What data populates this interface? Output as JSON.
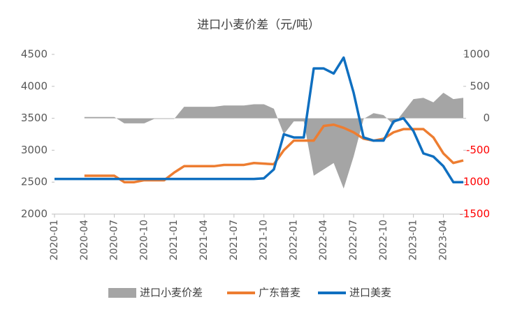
{
  "chart_data": {
    "type": "line",
    "title": "进口小麦价差（元/吨）",
    "categories": [
      "2020-01",
      null,
      null,
      "2020-04",
      null,
      null,
      "2020-07",
      null,
      null,
      "2020-10",
      null,
      null,
      "2021-01",
      null,
      null,
      "2021-04",
      null,
      null,
      "2021-07",
      null,
      null,
      "2021-10",
      null,
      null,
      "2022-01",
      null,
      null,
      "2022-04",
      null,
      null,
      "2022-07",
      null,
      null,
      "2022-10",
      null,
      null,
      "2023-01",
      null,
      null,
      "2023-04",
      null,
      null
    ],
    "series": [
      {
        "name": "进口小麦价差",
        "color": "#a5a5a5",
        "style": "area",
        "axis": "y2",
        "values": [
          null,
          null,
          null,
          20,
          20,
          20,
          20,
          -80,
          -80,
          -80,
          -10,
          -10,
          -10,
          180,
          180,
          180,
          180,
          200,
          200,
          200,
          220,
          220,
          150,
          -250,
          -50,
          -50,
          -900,
          -800,
          -700,
          -1100,
          -600,
          -10,
          80,
          50,
          -100,
          100,
          300,
          320,
          250,
          400,
          300,
          320
        ]
      },
      {
        "name": "广东普麦",
        "color": "#ed7d31",
        "style": "line",
        "values": [
          null,
          null,
          null,
          2600,
          2600,
          2600,
          2600,
          2500,
          2500,
          2530,
          2530,
          2530,
          2650,
          2750,
          2750,
          2750,
          2750,
          2770,
          2770,
          2770,
          2800,
          2790,
          2780,
          3000,
          3150,
          3150,
          3150,
          3380,
          3400,
          3350,
          3280,
          3180,
          3150,
          3180,
          3280,
          3330,
          3330,
          3330,
          3200,
          2950,
          2800,
          2840
        ]
      },
      {
        "name": "进口美麦",
        "color": "#0f6fc0",
        "style": "line",
        "values": [
          2550,
          2550,
          2550,
          2550,
          2550,
          2550,
          2550,
          2550,
          2550,
          2550,
          2550,
          2550,
          2550,
          2550,
          2550,
          2550,
          2550,
          2550,
          2550,
          2550,
          2550,
          2560,
          2700,
          3250,
          3200,
          3200,
          4280,
          4280,
          4200,
          4450,
          3900,
          3200,
          3150,
          3150,
          3450,
          3500,
          3300,
          2950,
          2900,
          2750,
          2500,
          2500
        ]
      }
    ],
    "ylim": [
      2000,
      4500
    ],
    "yticks": [
      2000,
      2500,
      3000,
      3500,
      4000,
      4500
    ],
    "y2lim": [
      -1500,
      1000
    ],
    "y2ticks": [
      -1500,
      -1000,
      -500,
      0,
      500,
      1000
    ],
    "y2_negative_color": "#ff0000",
    "legend": "bottom",
    "grid": false
  }
}
